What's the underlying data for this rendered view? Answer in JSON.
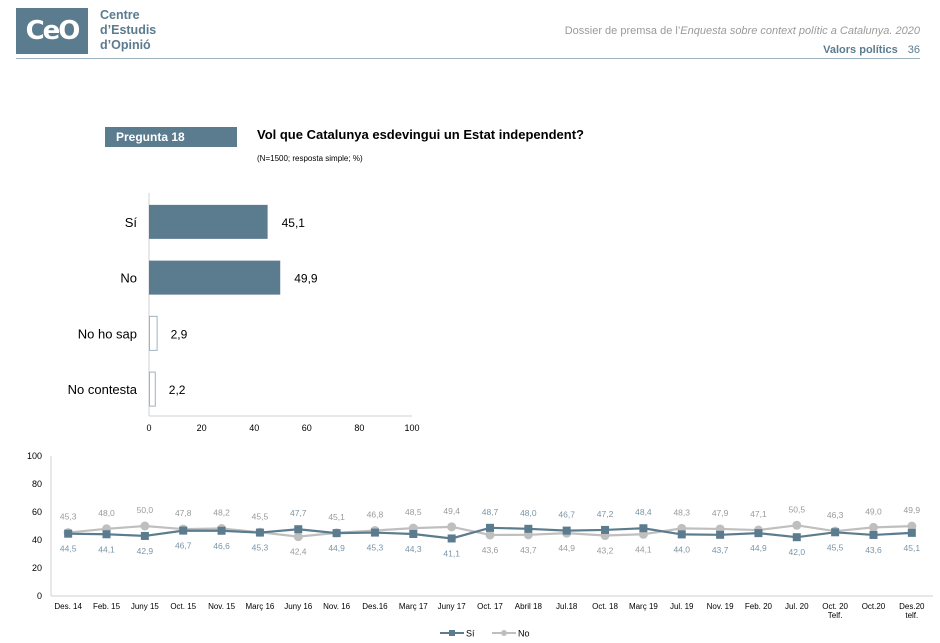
{
  "header": {
    "logo_text": "CeO",
    "org_lines": [
      "Centre",
      "d’Estudis",
      "d’Opinió"
    ],
    "doc_title_prefix": "Dossier de premsa de l’",
    "doc_title_italic": "Enquesta sobre context polític a Catalunya. 2020",
    "section": "Valors polítics",
    "page_number": "36"
  },
  "question": {
    "badge": "Pregunta 18",
    "title": "Vol que Catalunya esdevingui un Estat independent?",
    "subtitle": "(N=1500; resposta simple; %)"
  },
  "colors": {
    "accent": "#5b7b8f",
    "no_series": "#bfbfbf",
    "axis": "#d0d0d0"
  },
  "chart_data": [
    {
      "type": "bar",
      "orientation": "horizontal",
      "categories": [
        "Sí",
        "No",
        "No ho sap",
        "No contesta"
      ],
      "values": [
        45.1,
        49.9,
        2.9,
        2.2
      ],
      "value_labels": [
        "45,1",
        "49,9",
        "2,9",
        "2,2"
      ],
      "filled": [
        true,
        true,
        false,
        false
      ],
      "xlim": [
        0,
        100
      ],
      "xticks": [
        0,
        20,
        40,
        60,
        80,
        100
      ],
      "grid": false
    },
    {
      "type": "line",
      "categories": [
        "Des. 14",
        "Feb. 15",
        "Juny 15",
        "Oct. 15",
        "Nov. 15",
        "Març 16",
        "Juny 16",
        "Nov. 16",
        "Des.16",
        "Març 17",
        "Juny 17",
        "Oct. 17",
        "Abril 18",
        "Jul.18",
        "Oct. 18",
        "Març 19",
        "Jul. 19",
        "Nov. 19",
        "Feb. 20",
        "Jul. 20",
        "Oct. 20\nTelf.",
        "Oct.20",
        "Des.20\ntelf."
      ],
      "series": [
        {
          "name": "Sí",
          "marker": "square",
          "color": "#5b7b8f",
          "values": [
            44.5,
            44.1,
            42.9,
            46.7,
            46.6,
            45.3,
            47.7,
            44.9,
            45.3,
            44.3,
            41.1,
            48.7,
            48.0,
            46.7,
            47.2,
            48.4,
            44.0,
            43.7,
            44.9,
            42.0,
            45.5,
            43.6,
            45.1
          ]
        },
        {
          "name": "No",
          "marker": "circle",
          "color": "#bfbfbf",
          "values": [
            45.3,
            48.0,
            50.0,
            47.8,
            48.2,
            45.5,
            42.4,
            45.1,
            46.8,
            48.5,
            49.4,
            43.6,
            43.7,
            44.9,
            43.2,
            44.1,
            48.3,
            47.9,
            47.1,
            50.5,
            46.3,
            49.0,
            49.9
          ]
        }
      ],
      "ylim": [
        0,
        100
      ],
      "yticks": [
        0,
        20,
        40,
        60,
        80,
        100
      ],
      "legend": "bottom-center",
      "grid": false,
      "decimal_separator": ","
    }
  ]
}
